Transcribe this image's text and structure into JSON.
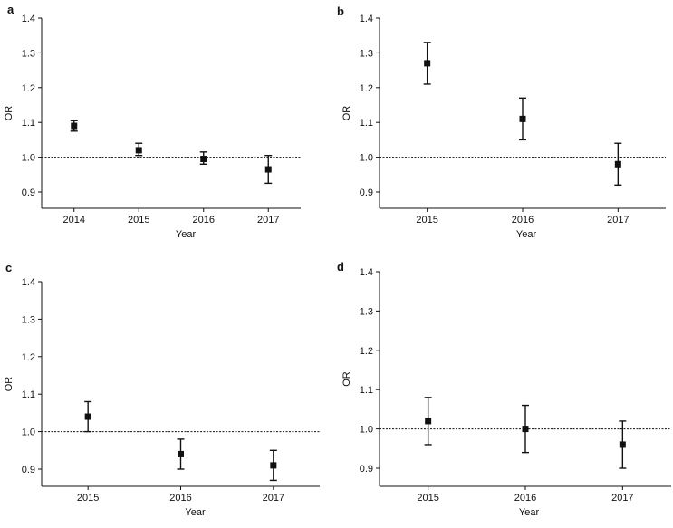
{
  "chart_data": [
    {
      "panel": "a",
      "type": "scatter",
      "xlabel": "Year",
      "ylabel": "OR",
      "ylim": [
        0.85,
        1.4
      ],
      "yticks": [
        "0.9",
        "1.0",
        "1.1",
        "1.2",
        "1.3",
        "1.4"
      ],
      "reference_line": 1.0,
      "categories": [
        "2014",
        "2015",
        "2016",
        "2017"
      ],
      "values": [
        1.09,
        1.02,
        0.995,
        0.965
      ],
      "lower": [
        1.075,
        1.005,
        0.98,
        0.925
      ],
      "upper": [
        1.105,
        1.04,
        1.015,
        1.005
      ]
    },
    {
      "panel": "b",
      "type": "scatter",
      "xlabel": "Year",
      "ylabel": "OR",
      "ylim": [
        0.85,
        1.4
      ],
      "yticks": [
        "0.9",
        "1.0",
        "1.1",
        "1.2",
        "1.3",
        "1.4"
      ],
      "reference_line": 1.0,
      "categories": [
        "2015",
        "2016",
        "2017"
      ],
      "values": [
        1.27,
        1.11,
        0.98
      ],
      "lower": [
        1.21,
        1.05,
        0.92
      ],
      "upper": [
        1.33,
        1.17,
        1.04
      ]
    },
    {
      "panel": "c",
      "type": "scatter",
      "xlabel": "Year",
      "ylabel": "OR",
      "ylim": [
        0.85,
        1.4
      ],
      "yticks": [
        "0.9",
        "1.0",
        "1.1",
        "1.2",
        "1.3",
        "1.4"
      ],
      "reference_line": 1.0,
      "categories": [
        "2015",
        "2016",
        "2017"
      ],
      "values": [
        1.04,
        0.94,
        0.91
      ],
      "lower": [
        1.0,
        0.9,
        0.87
      ],
      "upper": [
        1.08,
        0.98,
        0.95
      ]
    },
    {
      "panel": "d",
      "type": "scatter",
      "xlabel": "Year",
      "ylabel": "OR",
      "ylim": [
        0.85,
        1.4
      ],
      "yticks": [
        "0.9",
        "1.0",
        "1.1",
        "1.2",
        "1.3",
        "1.4"
      ],
      "reference_line": 1.0,
      "categories": [
        "2015",
        "2016",
        "2017"
      ],
      "values": [
        1.02,
        1.0,
        0.96
      ],
      "lower": [
        0.96,
        0.94,
        0.9
      ],
      "upper": [
        1.08,
        1.06,
        1.02
      ]
    }
  ]
}
